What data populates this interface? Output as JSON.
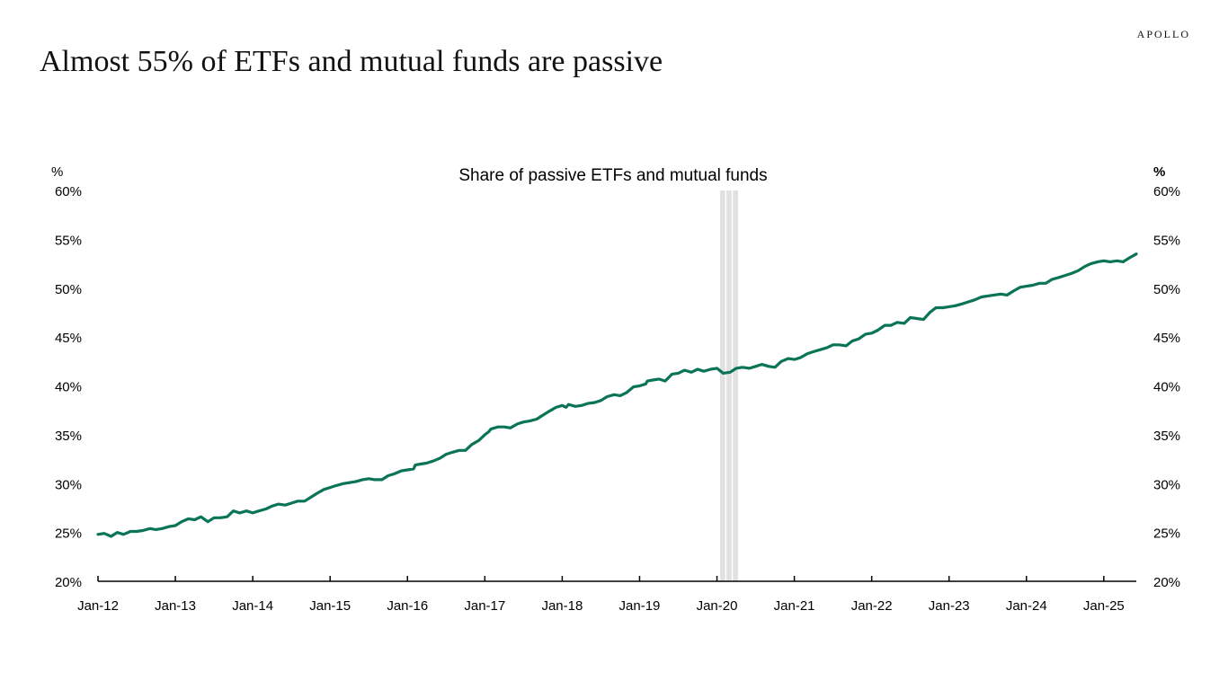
{
  "brand": "APOLLO",
  "headline": "Almost 55% of ETFs and mutual funds are passive",
  "chart_data": {
    "type": "line",
    "title": "Share of passive ETFs and mutual funds",
    "left_axis_label": "%",
    "right_axis_label": "%",
    "xlabel": "",
    "ylabel": "%",
    "ylim": [
      20,
      60
    ],
    "yticks": [
      20,
      25,
      30,
      35,
      40,
      45,
      50,
      55,
      60
    ],
    "ytick_labels": [
      "20%",
      "25%",
      "30%",
      "35%",
      "40%",
      "45%",
      "50%",
      "55%",
      "60%"
    ],
    "xlim": [
      2012.0,
      2025.42
    ],
    "xtick_positions": [
      2012,
      2013,
      2014,
      2015,
      2016,
      2017,
      2018,
      2019,
      2020,
      2021,
      2022,
      2023,
      2024,
      2025
    ],
    "xtick_labels": [
      "Jan-12",
      "Jan-13",
      "Jan-14",
      "Jan-15",
      "Jan-16",
      "Jan-17",
      "Jan-18",
      "Jan-19",
      "Jan-20",
      "Jan-21",
      "Jan-22",
      "Jan-23",
      "Jan-24",
      "Jan-25"
    ],
    "recession_band": [
      2020.04,
      2020.29
    ],
    "line_color": "#0a7456",
    "band_color": "#e1e1e1",
    "grid": false,
    "series": [
      {
        "name": "Share of passive ETFs and mutual funds",
        "points": [
          [
            2012.0,
            24.8
          ],
          [
            2012.08,
            24.9
          ],
          [
            2012.17,
            24.6
          ],
          [
            2012.25,
            25.0
          ],
          [
            2012.33,
            24.8
          ],
          [
            2012.42,
            25.1
          ],
          [
            2012.5,
            25.1
          ],
          [
            2012.58,
            25.2
          ],
          [
            2012.67,
            25.4
          ],
          [
            2012.75,
            25.3
          ],
          [
            2012.83,
            25.4
          ],
          [
            2012.92,
            25.6
          ],
          [
            2013.0,
            25.7
          ],
          [
            2013.08,
            26.1
          ],
          [
            2013.17,
            26.4
          ],
          [
            2013.25,
            26.3
          ],
          [
            2013.33,
            26.6
          ],
          [
            2013.42,
            26.1
          ],
          [
            2013.5,
            26.5
          ],
          [
            2013.58,
            26.5
          ],
          [
            2013.67,
            26.6
          ],
          [
            2013.75,
            27.2
          ],
          [
            2013.83,
            27.0
          ],
          [
            2013.92,
            27.2
          ],
          [
            2014.0,
            27.0
          ],
          [
            2014.08,
            27.2
          ],
          [
            2014.17,
            27.4
          ],
          [
            2014.25,
            27.7
          ],
          [
            2014.33,
            27.9
          ],
          [
            2014.42,
            27.8
          ],
          [
            2014.5,
            28.0
          ],
          [
            2014.58,
            28.2
          ],
          [
            2014.67,
            28.2
          ],
          [
            2014.75,
            28.6
          ],
          [
            2014.83,
            29.0
          ],
          [
            2014.92,
            29.4
          ],
          [
            2015.0,
            29.6
          ],
          [
            2015.08,
            29.8
          ],
          [
            2015.17,
            30.0
          ],
          [
            2015.25,
            30.1
          ],
          [
            2015.33,
            30.2
          ],
          [
            2015.42,
            30.4
          ],
          [
            2015.5,
            30.5
          ],
          [
            2015.58,
            30.4
          ],
          [
            2015.67,
            30.4
          ],
          [
            2015.75,
            30.8
          ],
          [
            2015.83,
            31.0
          ],
          [
            2015.92,
            31.3
          ],
          [
            2016.0,
            31.4
          ],
          [
            2016.08,
            31.5
          ],
          [
            2016.1,
            31.9
          ],
          [
            2016.17,
            32.0
          ],
          [
            2016.25,
            32.1
          ],
          [
            2016.33,
            32.3
          ],
          [
            2016.42,
            32.6
          ],
          [
            2016.5,
            33.0
          ],
          [
            2016.58,
            33.2
          ],
          [
            2016.67,
            33.4
          ],
          [
            2016.75,
            33.4
          ],
          [
            2016.83,
            34.0
          ],
          [
            2016.92,
            34.4
          ],
          [
            2017.0,
            35.0
          ],
          [
            2017.05,
            35.3
          ],
          [
            2017.08,
            35.6
          ],
          [
            2017.17,
            35.8
          ],
          [
            2017.25,
            35.8
          ],
          [
            2017.33,
            35.7
          ],
          [
            2017.42,
            36.1
          ],
          [
            2017.5,
            36.3
          ],
          [
            2017.58,
            36.4
          ],
          [
            2017.67,
            36.6
          ],
          [
            2017.75,
            37.0
          ],
          [
            2017.83,
            37.4
          ],
          [
            2017.92,
            37.8
          ],
          [
            2018.0,
            38.0
          ],
          [
            2018.05,
            37.8
          ],
          [
            2018.08,
            38.1
          ],
          [
            2018.17,
            37.9
          ],
          [
            2018.25,
            38.0
          ],
          [
            2018.33,
            38.2
          ],
          [
            2018.42,
            38.3
          ],
          [
            2018.5,
            38.5
          ],
          [
            2018.58,
            38.9
          ],
          [
            2018.67,
            39.1
          ],
          [
            2018.75,
            39.0
          ],
          [
            2018.83,
            39.3
          ],
          [
            2018.92,
            39.9
          ],
          [
            2019.0,
            40.0
          ],
          [
            2019.08,
            40.2
          ],
          [
            2019.1,
            40.5
          ],
          [
            2019.17,
            40.6
          ],
          [
            2019.25,
            40.7
          ],
          [
            2019.33,
            40.5
          ],
          [
            2019.42,
            41.2
          ],
          [
            2019.5,
            41.3
          ],
          [
            2019.58,
            41.6
          ],
          [
            2019.67,
            41.4
          ],
          [
            2019.75,
            41.7
          ],
          [
            2019.83,
            41.5
          ],
          [
            2019.92,
            41.7
          ],
          [
            2020.0,
            41.8
          ],
          [
            2020.08,
            41.3
          ],
          [
            2020.17,
            41.4
          ],
          [
            2020.25,
            41.8
          ],
          [
            2020.33,
            41.9
          ],
          [
            2020.42,
            41.8
          ],
          [
            2020.5,
            42.0
          ],
          [
            2020.58,
            42.2
          ],
          [
            2020.67,
            42.0
          ],
          [
            2020.75,
            41.9
          ],
          [
            2020.83,
            42.5
          ],
          [
            2020.92,
            42.8
          ],
          [
            2021.0,
            42.7
          ],
          [
            2021.08,
            42.9
          ],
          [
            2021.17,
            43.3
          ],
          [
            2021.25,
            43.5
          ],
          [
            2021.33,
            43.7
          ],
          [
            2021.42,
            43.9
          ],
          [
            2021.5,
            44.2
          ],
          [
            2021.58,
            44.2
          ],
          [
            2021.67,
            44.1
          ],
          [
            2021.75,
            44.6
          ],
          [
            2021.83,
            44.8
          ],
          [
            2021.92,
            45.3
          ],
          [
            2022.0,
            45.4
          ],
          [
            2022.08,
            45.7
          ],
          [
            2022.17,
            46.2
          ],
          [
            2022.25,
            46.2
          ],
          [
            2022.33,
            46.5
          ],
          [
            2022.42,
            46.4
          ],
          [
            2022.5,
            47.0
          ],
          [
            2022.58,
            46.9
          ],
          [
            2022.67,
            46.8
          ],
          [
            2022.75,
            47.5
          ],
          [
            2022.83,
            48.0
          ],
          [
            2022.92,
            48.0
          ],
          [
            2023.0,
            48.1
          ],
          [
            2023.08,
            48.2
          ],
          [
            2023.17,
            48.4
          ],
          [
            2023.25,
            48.6
          ],
          [
            2023.33,
            48.8
          ],
          [
            2023.42,
            49.1
          ],
          [
            2023.5,
            49.2
          ],
          [
            2023.58,
            49.3
          ],
          [
            2023.67,
            49.4
          ],
          [
            2023.75,
            49.3
          ],
          [
            2023.83,
            49.7
          ],
          [
            2023.92,
            50.1
          ],
          [
            2024.0,
            50.2
          ],
          [
            2024.08,
            50.3
          ],
          [
            2024.17,
            50.5
          ],
          [
            2024.25,
            50.5
          ],
          [
            2024.33,
            50.9
          ],
          [
            2024.42,
            51.1
          ],
          [
            2024.5,
            51.3
          ],
          [
            2024.58,
            51.5
          ],
          [
            2024.67,
            51.8
          ],
          [
            2024.75,
            52.2
          ],
          [
            2024.83,
            52.5
          ],
          [
            2024.92,
            52.7
          ],
          [
            2025.0,
            52.8
          ],
          [
            2025.08,
            52.7
          ],
          [
            2025.17,
            52.8
          ],
          [
            2025.25,
            52.7
          ],
          [
            2025.33,
            53.1
          ],
          [
            2025.42,
            53.5
          ]
        ]
      }
    ]
  }
}
